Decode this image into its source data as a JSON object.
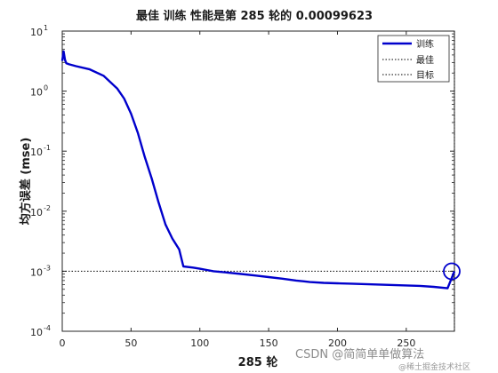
{
  "chart_data": {
    "type": "line",
    "title": "最佳 训练 性能是第 285 轮的 0.00099623",
    "xlabel": "285 轮",
    "ylabel": "均方误差 (mse)",
    "xlim": [
      0,
      285
    ],
    "ylim": [
      0.0001,
      10
    ],
    "yscale": "log",
    "xticks": [
      "0",
      "50",
      "100",
      "150",
      "200",
      "250"
    ],
    "yticks": [
      {
        "base": "10",
        "exp": "1"
      },
      {
        "base": "10",
        "exp": "0"
      },
      {
        "base": "10",
        "exp": "-1"
      },
      {
        "base": "10",
        "exp": "-2"
      },
      {
        "base": "10",
        "exp": "-3"
      },
      {
        "base": "10",
        "exp": "-4"
      }
    ],
    "grid": false,
    "legend_position": "top-right",
    "legend": [
      "训练",
      "最佳",
      "目标"
    ],
    "colors": {
      "train": "#0000cc",
      "best": "#000000",
      "goal": "#000000"
    },
    "series": [
      {
        "name": "训练",
        "x": [
          0,
          1,
          2,
          3,
          5,
          10,
          20,
          30,
          40,
          45,
          50,
          55,
          60,
          65,
          70,
          75,
          80,
          85,
          88,
          95,
          100,
          105,
          110,
          120,
          130,
          140,
          150,
          160,
          170,
          175,
          180,
          190,
          200,
          210,
          220,
          230,
          240,
          250,
          260,
          270,
          280,
          285
        ],
        "y": [
          3.2,
          4.6,
          3.3,
          2.9,
          2.8,
          2.6,
          2.3,
          1.8,
          1.1,
          0.75,
          0.42,
          0.2,
          0.08,
          0.035,
          0.014,
          0.006,
          0.0035,
          0.0023,
          0.0012,
          0.00115,
          0.0011,
          0.00105,
          0.001,
          0.00095,
          0.0009,
          0.00085,
          0.0008,
          0.00075,
          0.0007,
          0.00068,
          0.00066,
          0.00064,
          0.00063,
          0.00062,
          0.00061,
          0.0006,
          0.00059,
          0.00058,
          0.00057,
          0.00055,
          0.00052,
          0.00099623
        ]
      }
    ],
    "best": {
      "x": 285,
      "y": 0.00099623
    },
    "goal": 0.001
  },
  "watermark": {
    "line1": "CSDN @简简单单做算法",
    "line2": "@稀土掘金技术社区"
  }
}
